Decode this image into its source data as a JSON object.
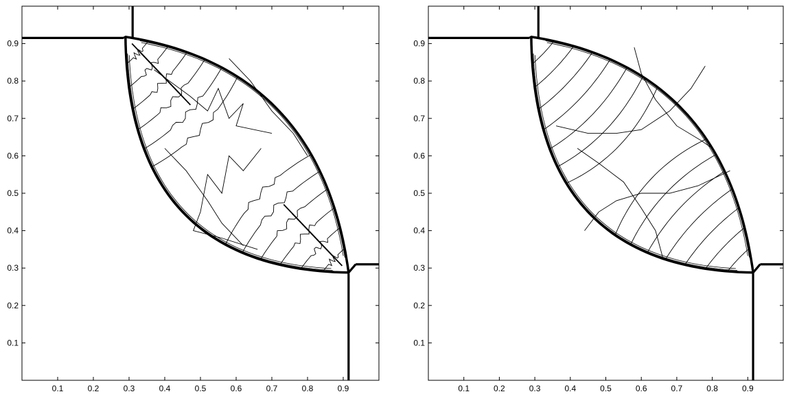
{
  "chart_data": [
    {
      "type": "contour",
      "panel": "left",
      "xlim": [
        0,
        1
      ],
      "ylim": [
        0,
        1
      ],
      "x_ticks": [
        0.1,
        0.2,
        0.3,
        0.4,
        0.5,
        0.6,
        0.7,
        0.8,
        0.9
      ],
      "y_ticks": [
        0.1,
        0.2,
        0.3,
        0.4,
        0.5,
        0.6,
        0.7,
        0.8,
        0.9
      ],
      "grid": false,
      "legend": "none",
      "shocks": [
        {
          "kind": "vertical",
          "x": 0.31,
          "y_from": 0.915,
          "y_to": 1.0
        },
        {
          "kind": "horizontal",
          "y": 0.915,
          "x_from": 0.0,
          "x_to": 0.285
        },
        {
          "kind": "horizontal",
          "y": 0.31,
          "x_from": 0.935,
          "x_to": 1.0
        },
        {
          "kind": "vertical",
          "x": 0.915,
          "y_from": 0.0,
          "y_to": 0.285
        }
      ],
      "lens": {
        "top_left_corner": [
          0.29,
          0.918
        ],
        "bottom_right_corner": [
          0.915,
          0.288
        ],
        "upper_arc_mid": [
          0.72,
          0.72
        ],
        "lower_arc_mid": [
          0.45,
          0.45
        ]
      }
    },
    {
      "type": "contour",
      "panel": "right",
      "xlim": [
        0,
        1
      ],
      "ylim": [
        0,
        1
      ],
      "x_ticks": [
        0.1,
        0.2,
        0.3,
        0.4,
        0.5,
        0.6,
        0.7,
        0.8,
        0.9
      ],
      "y_ticks": [
        0.1,
        0.2,
        0.3,
        0.4,
        0.5,
        0.6,
        0.7,
        0.8,
        0.9
      ],
      "grid": false,
      "legend": "none",
      "shocks": [
        {
          "kind": "vertical",
          "x": 0.31,
          "y_from": 0.915,
          "y_to": 1.0
        },
        {
          "kind": "horizontal",
          "y": 0.915,
          "x_from": 0.0,
          "x_to": 0.285
        },
        {
          "kind": "horizontal",
          "y": 0.31,
          "x_from": 0.935,
          "x_to": 1.0
        },
        {
          "kind": "vertical",
          "x": 0.915,
          "y_from": 0.0,
          "y_to": 0.285
        }
      ],
      "lens": {
        "top_left_corner": [
          0.29,
          0.918
        ],
        "bottom_right_corner": [
          0.915,
          0.288
        ],
        "upper_arc_mid": [
          0.72,
          0.72
        ],
        "lower_arc_mid": [
          0.45,
          0.45
        ]
      }
    }
  ]
}
